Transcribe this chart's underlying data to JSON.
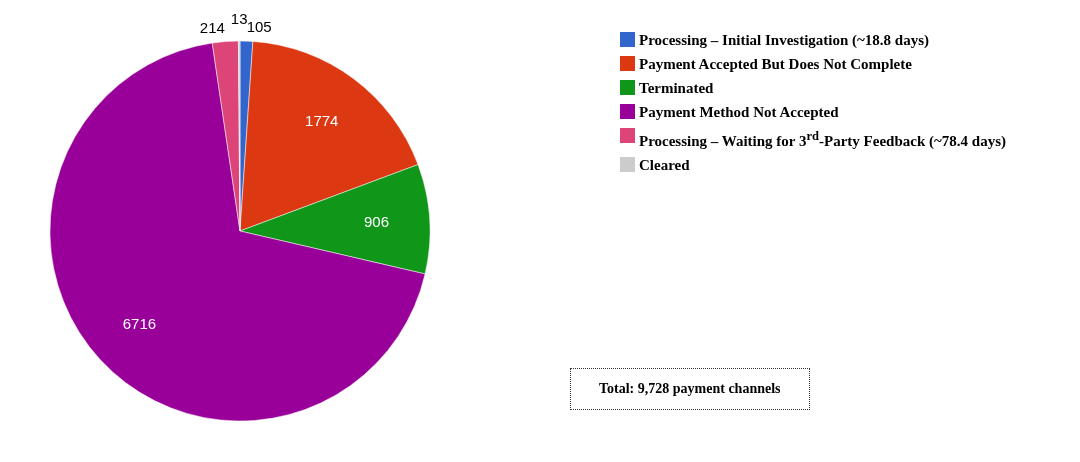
{
  "chart_data": {
    "type": "pie",
    "categories": [
      "Processing – Initial Investigation (~18.8 days)",
      "Payment Accepted But Does Not Complete",
      "Terminated",
      "Payment Method Not Accepted",
      "Processing – Waiting for 3$^{rd}$-Party Feedback (~78.4 days)",
      "Cleared"
    ],
    "values": [
      105,
      1774,
      906,
      6716,
      214,
      13
    ],
    "colors": [
      "#3366cc",
      "#dc3912",
      "#109618",
      "#990099",
      "#dd4477",
      "#cccccc"
    ],
    "data_labels": true,
    "legend": "right",
    "annotations": [
      "Total: 9,728 payment channels"
    ]
  }
}
